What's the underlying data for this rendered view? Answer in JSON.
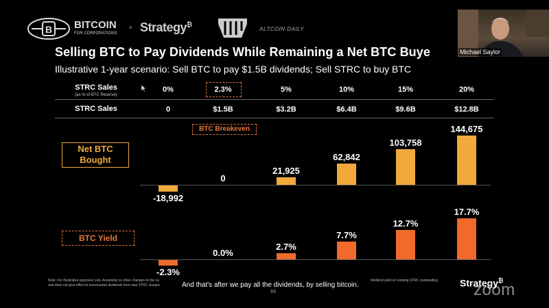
{
  "header": {
    "bitcoin_logo": "BITCOIN",
    "bitcoin_sub": "FOR CORPORATIONS",
    "times": "×",
    "strategy_logo": "Strategy",
    "strategy_b": "₿",
    "altcoin": "ALTCOIN DAILY"
  },
  "slide": {
    "title": "Selling BTC to Pay Dividends While Remaining a Net BTC Buye",
    "subtitle": "Illustrative 1-year scenario: Sell BTC to pay $1.5B dividends; Sell STRC to buy BTC"
  },
  "table": {
    "row1_label": "STRC Sales",
    "row1_sub": "(as % of BTC Reserve)",
    "row2_label": "STRC Sales",
    "pct": [
      "0%",
      "2.3%",
      "5%",
      "10%",
      "15%",
      "20%"
    ],
    "usd": [
      "0",
      "$1.5B",
      "$3.2B",
      "$6.4B",
      "$9.6B",
      "$12.8B"
    ],
    "breakeven": "BTC Breakeven"
  },
  "legend": {
    "net_btc": "Net BTC\nBought",
    "net_btc_l1": "Net BTC",
    "net_btc_l2": "Bought",
    "btc_yield": "BTC Yield"
  },
  "chart_data": [
    {
      "type": "bar",
      "categories": [
        "0%",
        "2.3%",
        "5%",
        "10%",
        "15%",
        "20%"
      ],
      "values": [
        -18992,
        0,
        21925,
        62842,
        103758,
        144675
      ],
      "labels": [
        "-18,992",
        "0",
        "21,925",
        "62,842",
        "103,758",
        "144,675"
      ],
      "color": "#f2a93b"
    },
    {
      "type": "bar",
      "categories": [
        "0%",
        "2.3%",
        "5%",
        "10%",
        "15%",
        "20%"
      ],
      "values": [
        -2.3,
        0.0,
        2.7,
        7.7,
        12.7,
        17.7
      ],
      "labels": [
        "-2.3%",
        "0.0%",
        "2.7%",
        "7.7%",
        "12.7%",
        "17.7%"
      ],
      "color": "#f06a2b"
    }
  ],
  "footer": {
    "note": "Note: For illustrative purposes only. Assuming no other changes to the ca",
    "note2": "and does not give effect to incremental dividends from new STRC issuanc",
    "note_right": "dividend yield on existing STRC outstanding",
    "caption": "And that's after we pay all the dividends, by selling bitcoin.",
    "page": "93",
    "strategy": "Strategy",
    "zoom": "zoom"
  },
  "webcam": {
    "name": "Michael Saylor"
  }
}
